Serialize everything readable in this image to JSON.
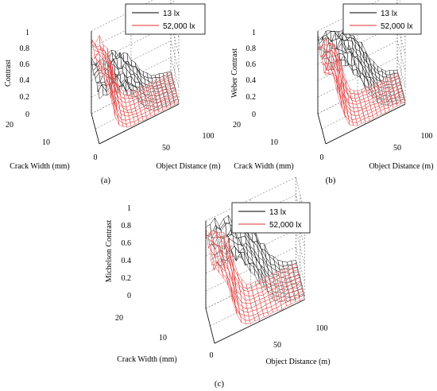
{
  "panels": [
    {
      "label": "(a)",
      "zlabel": "Contrast",
      "xlabel": "Crack Width (mm)",
      "ylabel": "Object Distance (m)",
      "zticks": [
        "0",
        "0.2",
        "0.4",
        "0.6",
        "0.8",
        "1"
      ],
      "xticks": [
        "0",
        "10",
        "20"
      ],
      "yticks": [
        "50",
        "100"
      ],
      "legend": [
        "13 lx",
        "52,000 lx"
      ]
    },
    {
      "label": "(b)",
      "zlabel": "Weber Contrast",
      "xlabel": "Crack Width (mm)",
      "ylabel": "Object Distance (m)",
      "zticks": [
        "0",
        "0.2",
        "0.4",
        "0.6",
        "0.8",
        "1"
      ],
      "xticks": [
        "0",
        "10",
        "20"
      ],
      "yticks": [
        "50",
        "100"
      ],
      "legend": [
        "13 lx",
        "52,000 lx"
      ]
    },
    {
      "label": "(c)",
      "zlabel": "Michelson Contrast",
      "xlabel": "Crack Width (mm)",
      "ylabel": "Object Distance (m)",
      "zticks": [
        "0",
        "0.2",
        "0.4",
        "0.6",
        "0.8",
        "1"
      ],
      "xticks": [
        "0",
        "10",
        "20"
      ],
      "yticks": [
        "50",
        "100"
      ],
      "legend": [
        "13 lx",
        "52,000 lx"
      ]
    }
  ],
  "chart_data": [
    {
      "type": "surface",
      "title": "",
      "xlabel": "Crack Width (mm)",
      "ylabel": "Object Distance (m)",
      "zlabel": "Contrast",
      "xlim": [
        0,
        20
      ],
      "ylim": [
        0,
        100
      ],
      "zlim": [
        0,
        1
      ],
      "grid": true,
      "legend_position": "top-right",
      "series": [
        {
          "name": "13 lx",
          "color": "#000000",
          "plateau": 0.62,
          "edge": 45,
          "steep": 0.1,
          "floor": 0.03
        },
        {
          "name": "52,000 lx",
          "color": "#e03030",
          "plateau": 0.88,
          "edge": 15,
          "steep": 0.2,
          "floor": 0.02
        }
      ]
    },
    {
      "type": "surface",
      "title": "",
      "xlabel": "Crack Width (mm)",
      "ylabel": "Object Distance (m)",
      "zlabel": "Weber Contrast",
      "xlim": [
        0,
        20
      ],
      "ylim": [
        0,
        100
      ],
      "zlim": [
        0,
        1
      ],
      "grid": true,
      "legend_position": "top-right",
      "series": [
        {
          "name": "13 lx",
          "color": "#000000",
          "plateau": 0.93,
          "edge": 48,
          "steep": 0.09,
          "floor": 0.03
        },
        {
          "name": "52,000 lx",
          "color": "#e03030",
          "plateau": 0.85,
          "edge": 18,
          "steep": 0.2,
          "floor": 0.02
        }
      ]
    },
    {
      "type": "surface",
      "title": "",
      "xlabel": "Crack Width (mm)",
      "ylabel": "Object Distance (m)",
      "zlabel": "Michelson Contrast",
      "xlim": [
        0,
        20
      ],
      "ylim": [
        0,
        100
      ],
      "zlim": [
        0,
        1
      ],
      "grid": true,
      "legend_position": "top-right",
      "series": [
        {
          "name": "13 lx",
          "color": "#000000",
          "plateau": 0.93,
          "edge": 48,
          "steep": 0.09,
          "floor": 0.03
        },
        {
          "name": "52,000 lx",
          "color": "#e03030",
          "plateau": 0.85,
          "edge": 18,
          "steep": 0.2,
          "floor": 0.02
        }
      ]
    }
  ]
}
